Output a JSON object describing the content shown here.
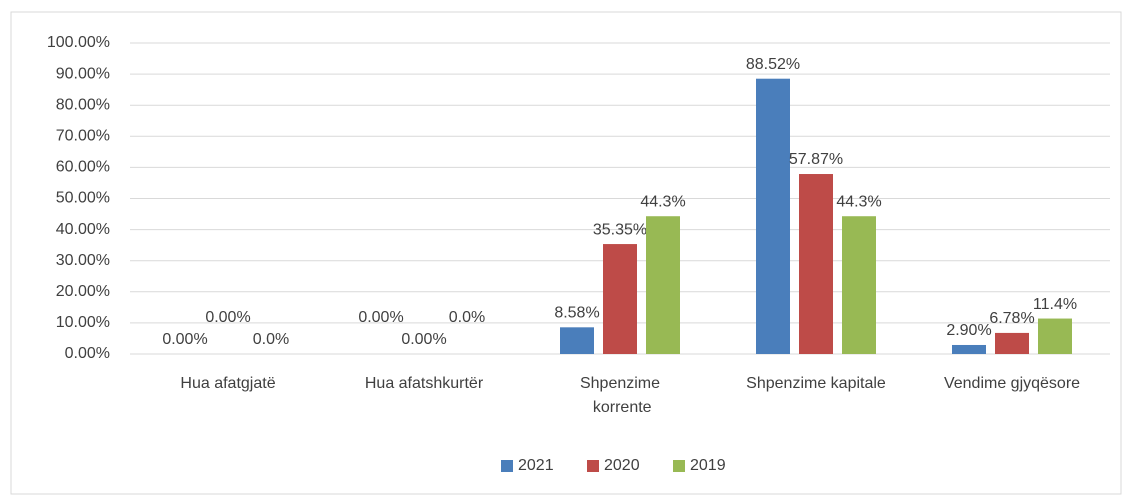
{
  "chart_data": {
    "type": "bar",
    "categories": [
      "Hua afatgjatë",
      "Hua afatshkurtër",
      "Shpenzime korrente",
      "Shpenzime kapitale",
      "Vendime gjyqësore"
    ],
    "series": [
      {
        "name": "2021",
        "color": "#4a7ebb",
        "values": [
          0,
          0,
          8.58,
          88.52,
          2.9
        ],
        "value_labels": [
          "0.00%",
          "0.00%",
          "8.58%",
          "88.52%",
          "2.90%"
        ]
      },
      {
        "name": "2020",
        "color": "#be4b48",
        "values": [
          0,
          0,
          35.35,
          57.87,
          6.78
        ],
        "value_labels": [
          "0.00%",
          "0.00%",
          "35.35%",
          "57.87%",
          "6.78%"
        ]
      },
      {
        "name": "2019",
        "color": "#98b954",
        "values": [
          0,
          0,
          44.3,
          44.3,
          11.4
        ],
        "value_labels": [
          "0.0%",
          "0.0%",
          "44.3%",
          "44.3%",
          "11.4%"
        ]
      }
    ],
    "ylim": [
      0,
      100
    ],
    "yticks": [
      {
        "value": 0,
        "label": "0.00%"
      },
      {
        "value": 10,
        "label": "10.00%"
      },
      {
        "value": 20,
        "label": "20.00%"
      },
      {
        "value": 30,
        "label": "30.00%"
      },
      {
        "value": 40,
        "label": "40.00%"
      },
      {
        "value": 50,
        "label": "50.00%"
      },
      {
        "value": 60,
        "label": "60.00%"
      },
      {
        "value": 70,
        "label": "70.00%"
      },
      {
        "value": 80,
        "label": "80.00%"
      },
      {
        "value": 90,
        "label": "90.00%"
      },
      {
        "value": 100,
        "label": "100.00%"
      }
    ],
    "grid": true,
    "legend": "bottom"
  }
}
